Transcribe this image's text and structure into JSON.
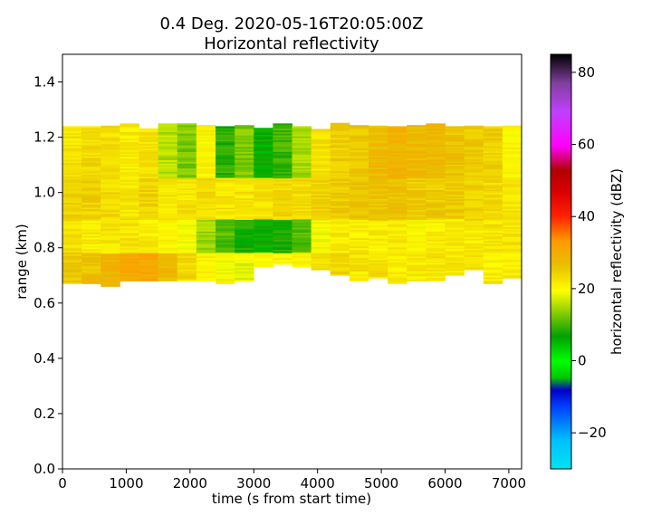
{
  "chart_data": {
    "type": "heatmap",
    "title_line1": "0.4 Deg. 2020-05-16T20:05:00Z",
    "title_line2": "Horizontal reflectivity",
    "xlabel": "time (s from start time)",
    "ylabel": "range (km)",
    "xlim": [
      0,
      7200
    ],
    "ylim": [
      0,
      1.5
    ],
    "xticks": [
      0,
      1000,
      2000,
      3000,
      4000,
      5000,
      6000,
      7000
    ],
    "xtick_labels": [
      "0",
      "1000",
      "2000",
      "3000",
      "4000",
      "5000",
      "6000",
      "7000"
    ],
    "yticks": [
      0,
      0.2,
      0.4,
      0.6,
      0.8,
      1.0,
      1.2,
      1.4
    ],
    "ytick_labels": [
      "0.0",
      "0.2",
      "0.4",
      "0.6",
      "0.8",
      "1.0",
      "1.2",
      "1.4"
    ],
    "colorbar": {
      "label": "horizontal reflectivity (dBZ)",
      "range": [
        -30,
        85
      ],
      "ticks": [
        -20,
        0,
        20,
        40,
        60,
        80
      ],
      "tick_labels": [
        "−20",
        "0",
        "20",
        "40",
        "60",
        "80"
      ]
    },
    "time_columns_s": [
      0,
      300,
      600,
      900,
      1200,
      1500,
      1800,
      2100,
      2400,
      2700,
      3000,
      3300,
      3600,
      3900,
      4200,
      4500,
      4800,
      5100,
      5400,
      5700,
      6000,
      6300,
      6600,
      6900
    ],
    "range_extent_km": {
      "bottom": [
        0.67,
        0.67,
        0.66,
        0.68,
        0.68,
        0.68,
        0.68,
        0.68,
        0.67,
        0.68,
        0.73,
        0.74,
        0.73,
        0.72,
        0.7,
        0.68,
        0.69,
        0.67,
        0.68,
        0.68,
        0.7,
        0.72,
        0.67,
        0.69
      ],
      "top": [
        1.24,
        1.24,
        1.24,
        1.25,
        1.23,
        1.25,
        1.25,
        1.24,
        1.24,
        1.24,
        1.23,
        1.25,
        1.24,
        1.23,
        1.25,
        1.24,
        1.24,
        1.24,
        1.24,
        1.25,
        1.24,
        1.24,
        1.24,
        1.24
      ]
    },
    "reflectivity_dbz_by_layer": {
      "layer_1.23_1.05": [
        22,
        23,
        22,
        21,
        22,
        15,
        12,
        20,
        8,
        12,
        6,
        9,
        14,
        22,
        24,
        25,
        27,
        28,
        27,
        27,
        26,
        25,
        24,
        20
      ],
      "layer_1.05_0.90": [
        24,
        24,
        23,
        22,
        24,
        22,
        22,
        23,
        22,
        22,
        22,
        23,
        23,
        24,
        25,
        26,
        26,
        26,
        25,
        25,
        25,
        24,
        23,
        22
      ],
      "layer_0.90_0.78": [
        22,
        21,
        22,
        22,
        21,
        20,
        19,
        14,
        10,
        7,
        6,
        7,
        10,
        19,
        21,
        21,
        21,
        21,
        20,
        21,
        21,
        21,
        22,
        22
      ],
      "layer_0.78_bottom": [
        25,
        26,
        28,
        30,
        31,
        27,
        23,
        20,
        19,
        18,
        20,
        20,
        20,
        22,
        24,
        22,
        22,
        21,
        21,
        22,
        22,
        22,
        21,
        21
      ]
    }
  }
}
